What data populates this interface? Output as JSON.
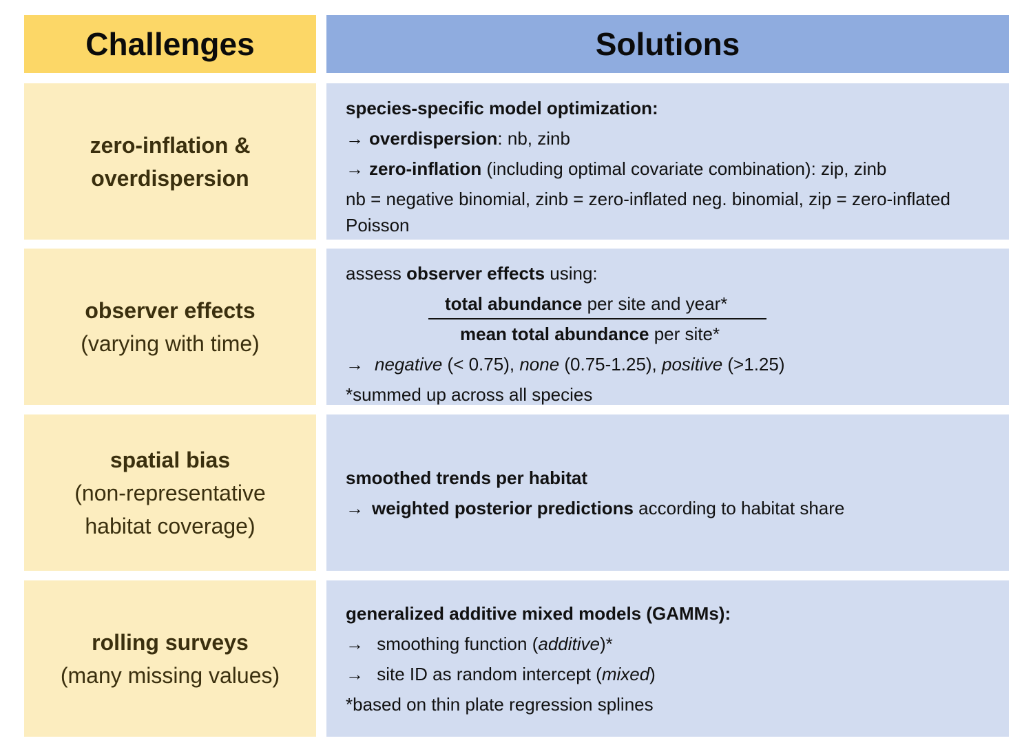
{
  "header": {
    "left": "Challenges",
    "right": "Solutions"
  },
  "rows": [
    {
      "challenge": {
        "title_line1": "zero-inflation &",
        "title_line2": "overdispersion"
      },
      "solution": {
        "heading": "species-specific model optimization:",
        "item1_bold": "overdispersion",
        "item1_rest": ": nb, zinb",
        "item2_bold": "zero-inflation",
        "item2_rest": " (including optimal covariate combination): zip, zinb",
        "note": "nb = negative binomial, zinb = zero-inflated neg. binomial, zip = zero-inflated Poisson"
      }
    },
    {
      "challenge": {
        "title": "observer effects",
        "subtitle": "(varying with time)"
      },
      "solution": {
        "intro_pre": "assess ",
        "intro_bold": "observer effects",
        "intro_post": " using:",
        "numerator_bold": "total abundance",
        "numerator_rest": " per site and year*",
        "denominator_bold": "mean total abundance",
        "denominator_rest": " per site*",
        "cat1": "negative",
        "cat1_val": " (< 0.75), ",
        "cat2": "none",
        "cat2_val": " (0.75-1.25), ",
        "cat3": "positive",
        "cat3_val": " (>1.25)",
        "footnote": "*summed up across all species"
      }
    },
    {
      "challenge": {
        "title": "spatial bias",
        "subtitle_line1": "(non-representative",
        "subtitle_line2": "habitat coverage)"
      },
      "solution": {
        "heading": "smoothed trends per habitat",
        "item_bold": "weighted posterior predictions",
        "item_rest": " according to habitat share"
      }
    },
    {
      "challenge": {
        "title": "rolling surveys",
        "subtitle": "(many missing values)"
      },
      "solution": {
        "heading": "generalized additive mixed models (GAMMs):",
        "item1_pre": " smoothing function (",
        "item1_italic": "additive",
        "item1_post": ")*",
        "item2_pre": " site ID as random intercept (",
        "item2_italic": "mixed",
        "item2_post": ")",
        "footnote": "*based on thin plate regression splines"
      }
    }
  ],
  "arrow_glyph": "→",
  "colors": {
    "challenge_header": "#fcd767",
    "solution_header": "#8facdf",
    "challenge_cell": "#fcedbf",
    "solution_cell": "#d2dcf0"
  }
}
